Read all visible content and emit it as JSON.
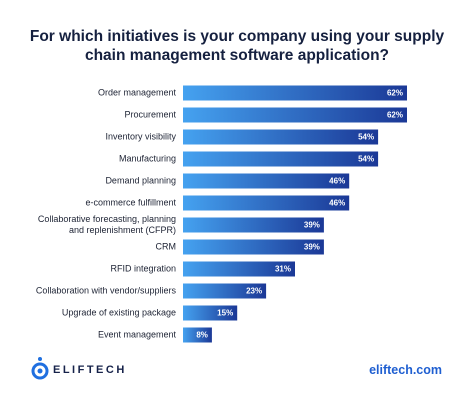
{
  "chart_data": {
    "type": "bar",
    "orientation": "horizontal",
    "title": "For which initiatives is your company using your supply chain management software application?",
    "categories": [
      "Order management",
      "Procurement",
      "Inventory visibility",
      "Manufacturing",
      "Demand planning",
      "e-commerce fulfillment",
      "Collaborative forecasting, planning and replenishment (CFPR)",
      "CRM",
      "RFID integration",
      "Collaboration with vendor/suppliers",
      "Upgrade of existing package",
      "Event management"
    ],
    "values": [
      62,
      62,
      54,
      54,
      46,
      46,
      39,
      39,
      31,
      23,
      15,
      8
    ],
    "value_labels": [
      "62%",
      "62%",
      "54%",
      "54%",
      "46%",
      "46%",
      "39%",
      "39%",
      "31%",
      "23%",
      "15%",
      "8%"
    ],
    "gradient": [
      "#45a2f0",
      "#1b3896"
    ]
  },
  "footer": {
    "brand": "ELIFTECH",
    "url": "eliftech.com"
  }
}
